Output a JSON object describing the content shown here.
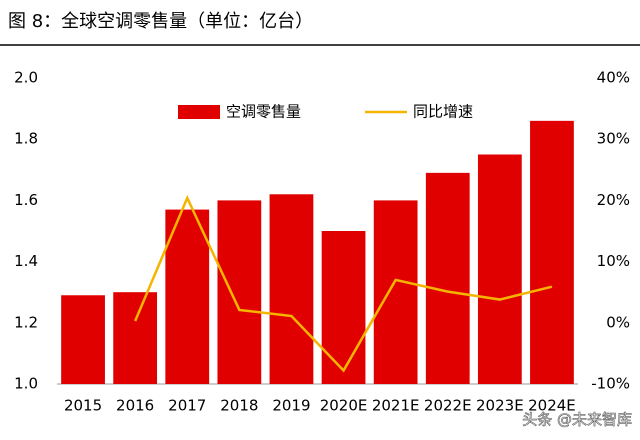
{
  "title": "图 8：全球空调零售量（单位：亿台）",
  "watermark": "头条 @未来智库",
  "chart_data": {
    "type": "bar-line",
    "categories": [
      "2015",
      "2016",
      "2017",
      "2018",
      "2019",
      "2020E",
      "2021E",
      "2022E",
      "2023E",
      "2024E"
    ],
    "series": [
      {
        "name": "空调零售量",
        "type": "bar",
        "color": "#e00000",
        "values": [
          1.29,
          1.3,
          1.57,
          1.6,
          1.62,
          1.5,
          1.6,
          1.69,
          1.75,
          1.86
        ]
      },
      {
        "name": "同比增速",
        "type": "line",
        "axis": "y2",
        "color": "#f5b400",
        "values": [
          null,
          0.3,
          20.4,
          2.1,
          1.1,
          -7.8,
          7.0,
          5.1,
          3.8,
          5.9
        ]
      }
    ],
    "ylim": [
      1.0,
      2.0
    ],
    "yticks": [
      {
        "value": 1.0,
        "label": "1.0"
      },
      {
        "value": 1.2,
        "label": "1.2"
      },
      {
        "value": 1.4,
        "label": "1.4"
      },
      {
        "value": 1.6,
        "label": "1.6"
      },
      {
        "value": 1.8,
        "label": "1.8"
      },
      {
        "value": 2.0,
        "label": "2.0"
      }
    ],
    "y2lim": [
      -10,
      40
    ],
    "y2ticks": [
      {
        "value": -10,
        "label": "-10%"
      },
      {
        "value": 0,
        "label": "0%"
      },
      {
        "value": 10,
        "label": "10%"
      },
      {
        "value": 20,
        "label": "20%"
      },
      {
        "value": 30,
        "label": "30%"
      },
      {
        "value": 40,
        "label": "40%"
      }
    ],
    "legend": "top"
  }
}
